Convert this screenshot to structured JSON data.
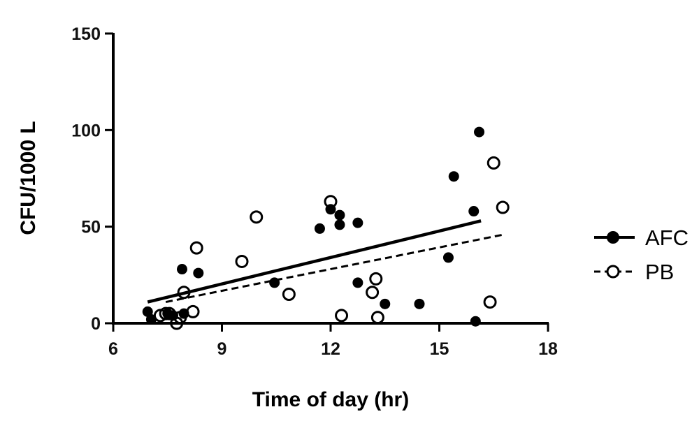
{
  "chart_data": {
    "type": "scatter",
    "xlabel": "Time of day (hr)",
    "ylabel": "CFU/1000 L",
    "xlim": [
      6,
      18
    ],
    "ylim": [
      0,
      150
    ],
    "x_ticks": [
      "6",
      "9",
      "12",
      "15",
      "18"
    ],
    "y_ticks": [
      "0",
      "50",
      "100",
      "150"
    ],
    "legend_position": "right",
    "grid": false,
    "series": [
      {
        "name": "AFC",
        "marker": "filled-circle",
        "color": "#000000",
        "points": [
          {
            "x": 6.95,
            "y": 6
          },
          {
            "x": 7.05,
            "y": 2
          },
          {
            "x": 7.5,
            "y": 5
          },
          {
            "x": 7.65,
            "y": 4
          },
          {
            "x": 7.9,
            "y": 28
          },
          {
            "x": 7.95,
            "y": 5
          },
          {
            "x": 8.35,
            "y": 26
          },
          {
            "x": 10.45,
            "y": 21
          },
          {
            "x": 11.7,
            "y": 49
          },
          {
            "x": 12.0,
            "y": 59
          },
          {
            "x": 12.25,
            "y": 56
          },
          {
            "x": 12.25,
            "y": 51
          },
          {
            "x": 12.75,
            "y": 52
          },
          {
            "x": 12.75,
            "y": 21
          },
          {
            "x": 13.5,
            "y": 10
          },
          {
            "x": 14.45,
            "y": 10
          },
          {
            "x": 15.25,
            "y": 34
          },
          {
            "x": 15.4,
            "y": 76
          },
          {
            "x": 15.95,
            "y": 58
          },
          {
            "x": 16.0,
            "y": 1
          },
          {
            "x": 16.1,
            "y": 99
          }
        ],
        "trend": {
          "x1": 6.95,
          "y1": 11,
          "x2": 16.15,
          "y2": 53,
          "style": "solid"
        }
      },
      {
        "name": "PB",
        "marker": "open-circle",
        "color": "#000000",
        "points": [
          {
            "x": 7.3,
            "y": 4
          },
          {
            "x": 7.45,
            "y": 5
          },
          {
            "x": 7.55,
            "y": 5
          },
          {
            "x": 7.75,
            "y": 0
          },
          {
            "x": 7.85,
            "y": 3
          },
          {
            "x": 7.95,
            "y": 16
          },
          {
            "x": 8.2,
            "y": 6
          },
          {
            "x": 8.3,
            "y": 39
          },
          {
            "x": 9.55,
            "y": 32
          },
          {
            "x": 9.95,
            "y": 55
          },
          {
            "x": 10.85,
            "y": 15
          },
          {
            "x": 12.0,
            "y": 63
          },
          {
            "x": 12.3,
            "y": 4
          },
          {
            "x": 13.15,
            "y": 16
          },
          {
            "x": 13.25,
            "y": 23
          },
          {
            "x": 13.3,
            "y": 3
          },
          {
            "x": 16.4,
            "y": 11
          },
          {
            "x": 16.5,
            "y": 83
          },
          {
            "x": 16.75,
            "y": 60
          }
        ],
        "trend": {
          "x1": 7.45,
          "y1": 11,
          "x2": 16.8,
          "y2": 46,
          "style": "dashed"
        }
      }
    ]
  }
}
